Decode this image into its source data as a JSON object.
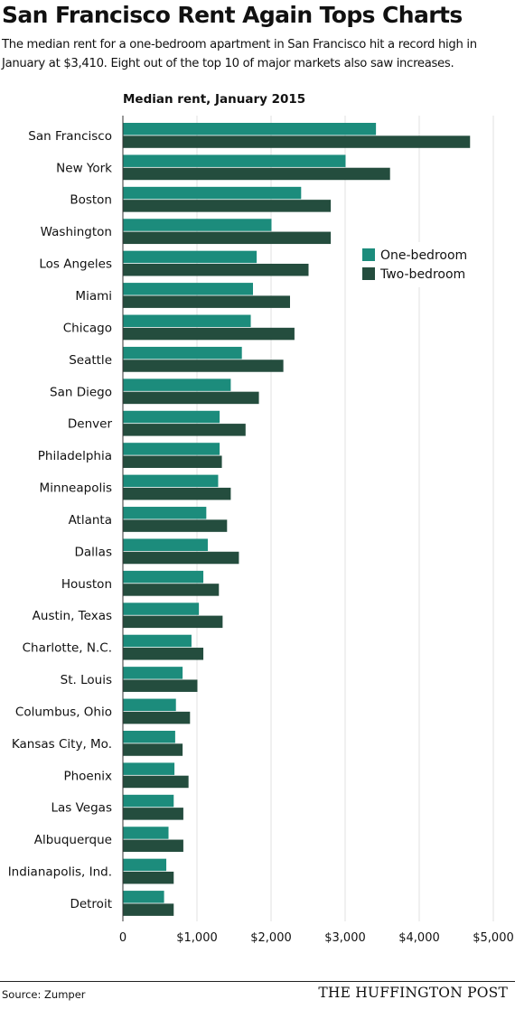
{
  "header": {
    "title": "San Francisco Rent Again Tops Charts",
    "subtitle": "The median rent for a one-bedroom apartment in San Francisco hit a record high in January at $3,410. Eight out of the top 10 of major markets also saw increases."
  },
  "footer": {
    "source": "Source: Zumper",
    "brand": "THE HUFFINGTON POST"
  },
  "chart_data": {
    "type": "bar",
    "orientation": "horizontal",
    "title": "Median rent, January 2015",
    "xlabel": "",
    "ylabel": "",
    "categories": [
      "San Francisco",
      "New York",
      "Boston",
      "Washington",
      "Los Angeles",
      "Miami",
      "Chicago",
      "Seattle",
      "San Diego",
      "Denver",
      "Philadelphia",
      "Minneapolis",
      "Atlanta",
      "Dallas",
      "Houston",
      "Austin, Texas",
      "Charlotte, N.C.",
      "St. Louis",
      "Columbus, Ohio",
      "Kansas City, Mo.",
      "Phoenix",
      "Las Vegas",
      "Albuquerque",
      "Indianapolis, Ind.",
      "Detroit"
    ],
    "series": [
      {
        "name": "One-bedroom",
        "color": "#1c8c7c",
        "values": [
          3410,
          3000,
          2400,
          2000,
          1800,
          1750,
          1720,
          1600,
          1450,
          1300,
          1300,
          1280,
          1120,
          1140,
          1080,
          1020,
          920,
          800,
          710,
          700,
          690,
          680,
          610,
          580,
          550
        ]
      },
      {
        "name": "Two-bedroom",
        "color": "#244d3e",
        "values": [
          4680,
          3600,
          2800,
          2800,
          2500,
          2250,
          2310,
          2160,
          1830,
          1650,
          1330,
          1450,
          1400,
          1560,
          1290,
          1340,
          1080,
          1000,
          900,
          800,
          880,
          810,
          810,
          680,
          680
        ]
      }
    ],
    "xlim": [
      0,
      5000
    ],
    "xticks": [
      0,
      1000,
      2000,
      3000,
      4000,
      5000
    ],
    "xtick_labels": [
      "0",
      "$1,000",
      "$2,000",
      "$3,000",
      "$4,000",
      "$5,000"
    ],
    "grid": true,
    "legend": "upper-right"
  }
}
